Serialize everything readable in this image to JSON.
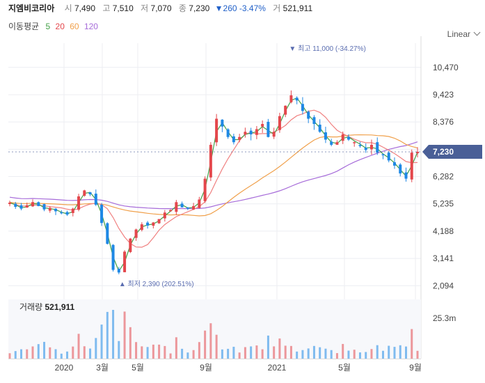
{
  "header": {
    "name": "지엠비코리아",
    "open_label": "시",
    "open": "7,490",
    "high_label": "고",
    "high": "7,510",
    "low_label": "저",
    "low": "7,070",
    "close_label": "종",
    "close": "7,230",
    "change": "▼260 -3.47%",
    "volume_label": "거",
    "volume": "521,911"
  },
  "ma_legend": {
    "title": "이동평균",
    "periods": [
      "5",
      "20",
      "60",
      "120"
    ]
  },
  "scale_mode": "Linear",
  "volume_title": {
    "label": "거래량",
    "value": "521,911"
  },
  "colors": {
    "up": "#e4474c",
    "down": "#1e88e5",
    "ma5": "#43a047",
    "ma20": "#f08080",
    "ma60": "#f0a04b",
    "ma120": "#a66bd9",
    "price_tag": "#4a5f97",
    "annotation": "#5a6db0"
  },
  "chart_data": {
    "type": "candlestick",
    "y_ticks": [
      "10,470",
      "9,423",
      "8,376",
      "7,329",
      "6,282",
      "5,235",
      "4,188",
      "3,141",
      "2,094"
    ],
    "y_values": [
      10470,
      9423,
      8376,
      7329,
      6282,
      5235,
      4188,
      3141,
      2094
    ],
    "ylim": [
      1700,
      11400
    ],
    "x_ticks": [
      "2020",
      "3월",
      "5월",
      "9월",
      "2021",
      "5월",
      "9월"
    ],
    "volume_ticks": [
      "25.3m"
    ],
    "current_price_label": "7,230",
    "current_price": 7230,
    "annotations": [
      {
        "marker": "▼",
        "text": "최고",
        "value": "11,000 (-34.27%)",
        "price": 11000
      },
      {
        "marker": "▲",
        "text": "최저",
        "value": "2,390 (202.51%)",
        "price": 2390
      }
    ],
    "close_series": [
      5280,
      5120,
      5050,
      5180,
      5300,
      5150,
      5020,
      5080,
      4950,
      4880,
      4820,
      5050,
      5520,
      5750,
      5600,
      5200,
      4500,
      3700,
      2700,
      2600,
      3400,
      3900,
      4250,
      4450,
      4400,
      4520,
      4650,
      4900,
      5000,
      5300,
      5100,
      5050,
      5150,
      5400,
      6200,
      7500,
      8500,
      8200,
      7800,
      7600,
      7800,
      8000,
      7900,
      8100,
      8300,
      7800,
      8000,
      8600,
      9000,
      9400,
      9200,
      8800,
      8500,
      8300,
      8000,
      7700,
      7500,
      7600,
      7900,
      7700,
      7600,
      7450,
      7300,
      7500,
      7200,
      7100,
      6900,
      6700,
      6400,
      6200,
      7200,
      7230
    ],
    "series_legend": [
      {
        "name": "5",
        "key": "ma5"
      },
      {
        "name": "20",
        "key": "ma20"
      },
      {
        "name": "60",
        "key": "ma60"
      },
      {
        "name": "120",
        "key": "ma120"
      }
    ]
  }
}
